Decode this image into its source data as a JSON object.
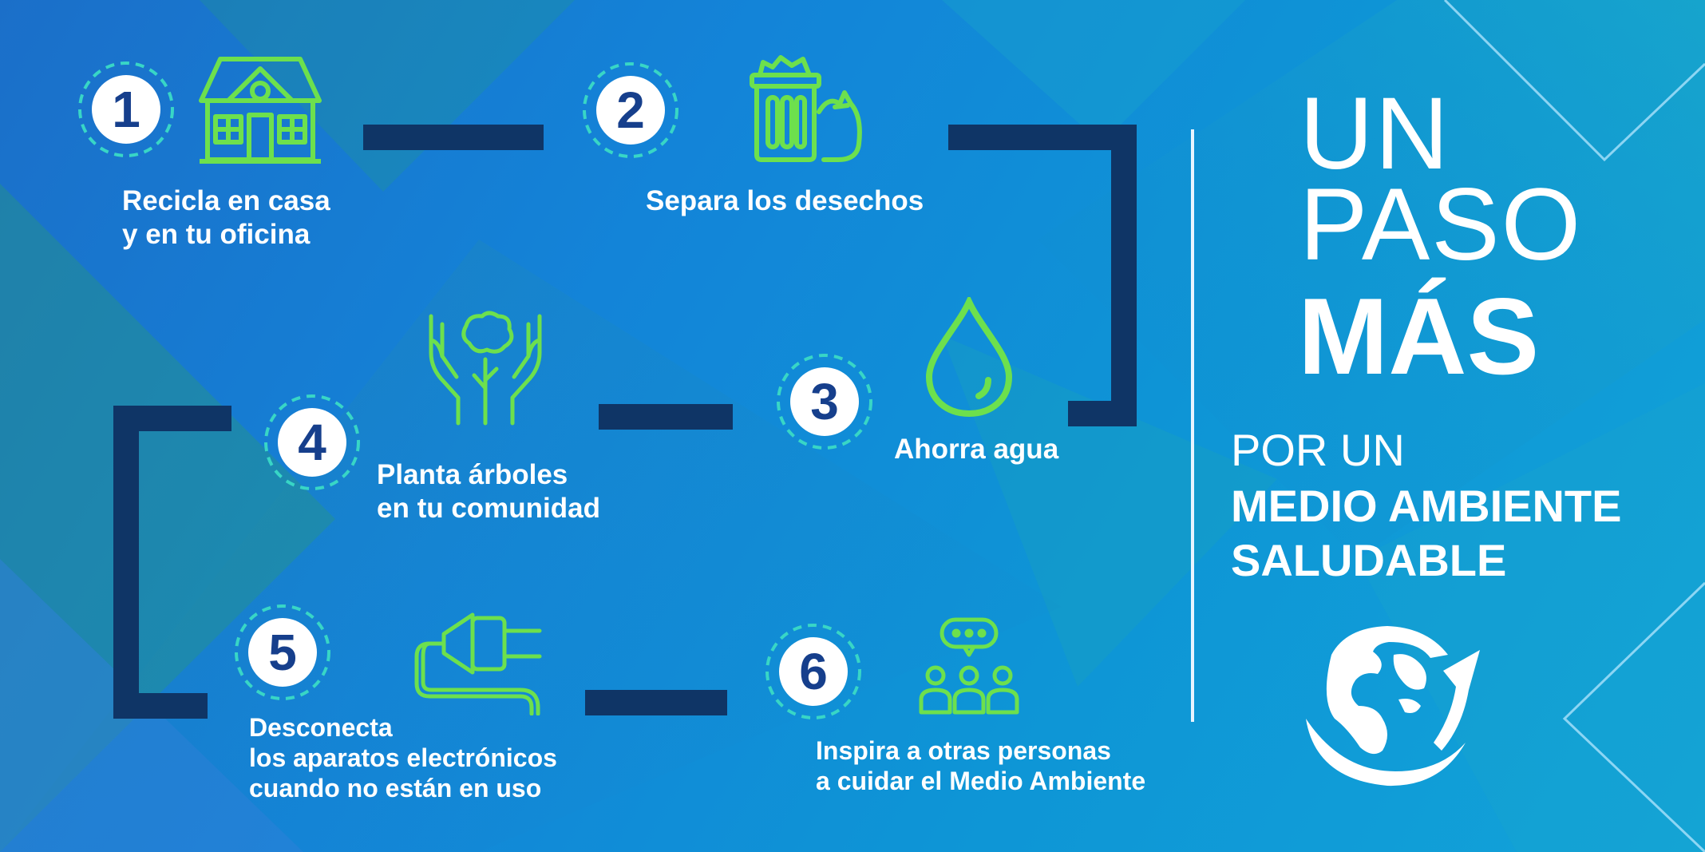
{
  "steps": [
    {
      "number": "1",
      "lines": [
        "Recicla en casa",
        "y en tu oficina"
      ],
      "icon": "house-icon"
    },
    {
      "number": "2",
      "lines": [
        "Separa los desechos"
      ],
      "icon": "trash-bin-icon"
    },
    {
      "number": "3",
      "lines": [
        "Ahorra agua"
      ],
      "icon": "water-drop-icon"
    },
    {
      "number": "4",
      "lines": [
        "Planta árboles",
        "en tu comunidad"
      ],
      "icon": "hands-tree-icon"
    },
    {
      "number": "5",
      "lines": [
        "Desconecta",
        "los aparatos electrónicos",
        "cuando no están en uso"
      ],
      "icon": "plug-icon"
    },
    {
      "number": "6",
      "lines": [
        "Inspira a otras personas",
        "a cuidar el Medio Ambiente"
      ],
      "icon": "group-speech-icon"
    }
  ],
  "title": {
    "line1": "UN",
    "line2": "PASO",
    "line3": "MÁS",
    "sub1": "POR UN",
    "sub2": "MEDIO AMBIENTE",
    "sub3": "SALUDABLE"
  },
  "colors": {
    "icon_green": "#6de04d",
    "badge_ring": "#38d6c6",
    "badge_number": "#163f8c",
    "connector": "#0f3566"
  },
  "logo": "globe-icon"
}
